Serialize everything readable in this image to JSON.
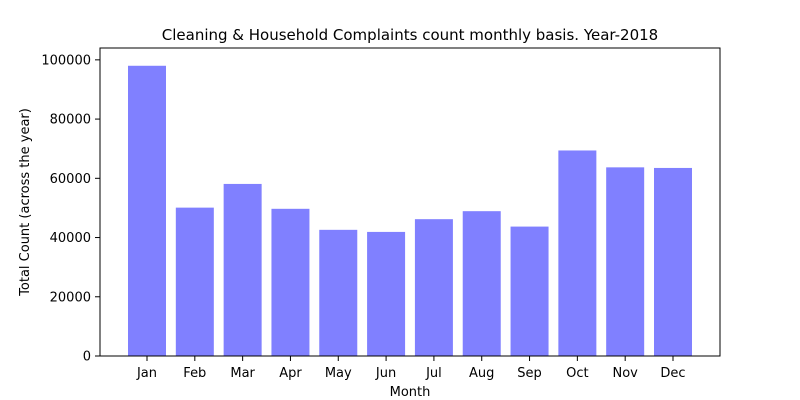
{
  "chart_data": {
    "type": "bar",
    "title": "Cleaning & Household Complaints count monthly basis. Year-2018",
    "xlabel": "Month",
    "ylabel": "Total Count (across the year)",
    "categories": [
      "Jan",
      "Feb",
      "Mar",
      "Apr",
      "May",
      "Jun",
      "Jul",
      "Aug",
      "Sep",
      "Oct",
      "Nov",
      "Dec"
    ],
    "values": [
      98000,
      50100,
      58100,
      49700,
      42600,
      41900,
      46200,
      48900,
      43700,
      69400,
      63700,
      63500
    ],
    "yticks": [
      0,
      20000,
      40000,
      60000,
      80000,
      100000
    ],
    "ylim": [
      0,
      104000
    ],
    "bar_color": "#8080ff",
    "grid": false,
    "legend": "none"
  }
}
